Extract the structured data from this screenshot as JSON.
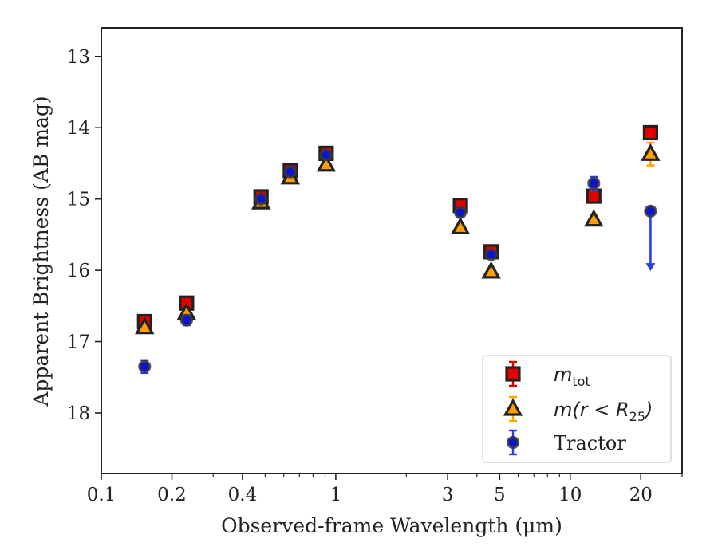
{
  "chart_data": {
    "type": "scatter",
    "xlabel": "Observed-frame Wavelength (μm)",
    "ylabel": "Apparent Brightness (AB mag)",
    "x_scale": "log",
    "xlim": [
      0.1,
      30
    ],
    "ylim": [
      18.85,
      12.6
    ],
    "y_inverted": true,
    "x_ticks": [
      0.1,
      0.2,
      0.4,
      1,
      3,
      5,
      10,
      20
    ],
    "x_tick_labels": [
      "0.1",
      "0.2",
      "0.4",
      "1",
      "3",
      "5",
      "10",
      "20"
    ],
    "y_ticks": [
      13,
      14,
      15,
      16,
      17,
      18
    ],
    "y_tick_labels": [
      "13",
      "14",
      "15",
      "16",
      "17",
      "18"
    ],
    "grid": false,
    "legend_position": "lower-right",
    "series": [
      {
        "name": "m_tot",
        "legend": {
          "math": "m",
          "sub": "tot",
          "rest": ""
        },
        "marker": "square",
        "color": "#e30000",
        "edge_color": "#222222",
        "errorbar_color": "#e30000",
        "x": [
          0.153,
          0.231,
          0.48,
          0.64,
          0.91,
          3.4,
          4.6,
          12.6,
          22.0
        ],
        "y": [
          16.72,
          16.46,
          14.97,
          14.6,
          14.36,
          15.09,
          15.74,
          14.96,
          14.07
        ],
        "yerr": [
          0.04,
          0.04,
          0.03,
          0.03,
          0.03,
          0.04,
          0.04,
          0.06,
          0.06
        ]
      },
      {
        "name": "m(r < R_25)",
        "legend": {
          "math": "m(r < R",
          "sub": "25",
          "rest": ")"
        },
        "marker": "triangle",
        "color": "#ff9f00",
        "edge_color": "#222222",
        "errorbar_color": "#ffa500",
        "x": [
          0.153,
          0.231,
          0.48,
          0.64,
          0.91,
          3.4,
          4.6,
          12.6,
          22.0
        ],
        "y": [
          16.8,
          16.6,
          15.05,
          14.7,
          14.52,
          15.4,
          16.02,
          15.29,
          14.37
        ],
        "yerr": [
          0.04,
          0.04,
          0.03,
          0.03,
          0.03,
          0.04,
          0.04,
          0.06,
          0.16
        ]
      },
      {
        "name": "Tractor",
        "legend": {
          "math": "",
          "sub": "",
          "rest": "Tractor"
        },
        "marker": "circle",
        "color": "#0a14d2",
        "edge_color": "#3a3a3a",
        "errorbar_color": "#2a3cf0",
        "x": [
          0.153,
          0.231,
          0.48,
          0.64,
          0.91,
          3.4,
          4.6,
          12.6,
          22.0
        ],
        "y": [
          17.35,
          16.7,
          15.0,
          14.62,
          14.38,
          15.19,
          15.78,
          14.78,
          15.17
        ],
        "yerr": [
          0.09,
          0.07,
          0.03,
          0.03,
          0.03,
          0.04,
          0.04,
          0.09,
          0.0
        ],
        "upper_limit_index": 8,
        "upper_limit_to": 16.0
      }
    ]
  }
}
